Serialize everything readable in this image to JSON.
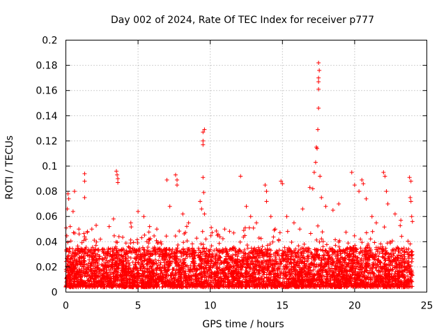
{
  "chart_data": {
    "type": "scatter",
    "title": "Day 002 of 2024, Rate Of TEC Index for receiver p777",
    "xlabel": "GPS time / hours",
    "ylabel": "ROTI / TECUs",
    "xlim": [
      0,
      25
    ],
    "ylim": [
      0,
      0.2
    ],
    "xticks": [
      0,
      5,
      10,
      15,
      20,
      25
    ],
    "xtick_labels": [
      "0",
      "5",
      "10",
      "15",
      "20",
      "25"
    ],
    "yticks": [
      0,
      0.02,
      0.04,
      0.06,
      0.08,
      0.1,
      0.12,
      0.14,
      0.16,
      0.18,
      0.2
    ],
    "ytick_labels": [
      "0",
      "0.02",
      "0.04",
      "0.06",
      "0.08",
      "0.1",
      "0.12",
      "0.14",
      "0.16",
      "0.18",
      "0.2"
    ],
    "grid": true,
    "marker": "+",
    "marker_color": "#ff0000",
    "series": [
      {
        "name": "ROTI",
        "points": [
          [
            0.1,
            0.066
          ],
          [
            0.15,
            0.078
          ],
          [
            0.2,
            0.074
          ],
          [
            0.3,
            0.052
          ],
          [
            0.5,
            0.064
          ],
          [
            0.6,
            0.08
          ],
          [
            0.9,
            0.05
          ],
          [
            1.3,
            0.094
          ],
          [
            1.3,
            0.088
          ],
          [
            1.3,
            0.075
          ],
          [
            1.5,
            0.048
          ],
          [
            1.8,
            0.05
          ],
          [
            2.1,
            0.053
          ],
          [
            3.5,
            0.096
          ],
          [
            3.55,
            0.093
          ],
          [
            3.6,
            0.09
          ],
          [
            3.6,
            0.087
          ],
          [
            3.0,
            0.052
          ],
          [
            3.3,
            0.058
          ],
          [
            4.5,
            0.055
          ],
          [
            5.0,
            0.064
          ],
          [
            5.4,
            0.06
          ],
          [
            5.8,
            0.052
          ],
          [
            6.3,
            0.05
          ],
          [
            7.0,
            0.089
          ],
          [
            7.2,
            0.068
          ],
          [
            7.6,
            0.093
          ],
          [
            7.7,
            0.089
          ],
          [
            7.7,
            0.085
          ],
          [
            8.1,
            0.062
          ],
          [
            8.5,
            0.055
          ],
          [
            9.3,
            0.072
          ],
          [
            9.5,
            0.127
          ],
          [
            9.6,
            0.129
          ],
          [
            9.5,
            0.12
          ],
          [
            9.5,
            0.117
          ],
          [
            9.5,
            0.091
          ],
          [
            9.55,
            0.079
          ],
          [
            9.4,
            0.066
          ],
          [
            9.6,
            0.062
          ],
          [
            10.5,
            0.045
          ],
          [
            11.0,
            0.05
          ],
          [
            12.1,
            0.092
          ],
          [
            12.5,
            0.068
          ],
          [
            12.8,
            0.06
          ],
          [
            13.2,
            0.055
          ],
          [
            13.8,
            0.085
          ],
          [
            13.9,
            0.08
          ],
          [
            13.9,
            0.072
          ],
          [
            14.2,
            0.06
          ],
          [
            14.5,
            0.05
          ],
          [
            14.9,
            0.088
          ],
          [
            15.0,
            0.086
          ],
          [
            15.3,
            0.06
          ],
          [
            15.8,
            0.055
          ],
          [
            16.2,
            0.05
          ],
          [
            16.4,
            0.066
          ],
          [
            16.9,
            0.083
          ],
          [
            17.1,
            0.082
          ],
          [
            17.2,
            0.095
          ],
          [
            17.3,
            0.103
          ],
          [
            17.35,
            0.115
          ],
          [
            17.4,
            0.114
          ],
          [
            17.45,
            0.129
          ],
          [
            17.5,
            0.146
          ],
          [
            17.5,
            0.161
          ],
          [
            17.5,
            0.167
          ],
          [
            17.5,
            0.17
          ],
          [
            17.55,
            0.176
          ],
          [
            17.5,
            0.182
          ],
          [
            17.6,
            0.092
          ],
          [
            17.7,
            0.075
          ],
          [
            18.0,
            0.068
          ],
          [
            18.5,
            0.065
          ],
          [
            18.9,
            0.07
          ],
          [
            19.8,
            0.095
          ],
          [
            20.0,
            0.085
          ],
          [
            20.3,
            0.08
          ],
          [
            20.5,
            0.089
          ],
          [
            20.6,
            0.086
          ],
          [
            20.8,
            0.074
          ],
          [
            21.2,
            0.06
          ],
          [
            21.5,
            0.055
          ],
          [
            22.0,
            0.095
          ],
          [
            22.1,
            0.092
          ],
          [
            22.2,
            0.08
          ],
          [
            22.3,
            0.07
          ],
          [
            22.8,
            0.062
          ],
          [
            23.2,
            0.057
          ],
          [
            23.8,
            0.091
          ],
          [
            23.9,
            0.088
          ],
          [
            23.85,
            0.075
          ],
          [
            23.9,
            0.072
          ],
          [
            23.95,
            0.06
          ],
          [
            24.0,
            0.056
          ]
        ],
        "band": {
          "description": "dense noise floor of samples",
          "x_range": [
            0,
            24
          ],
          "y_floor": 0.004,
          "y_typical_max": 0.035,
          "sample_count": 5000
        }
      }
    ]
  }
}
